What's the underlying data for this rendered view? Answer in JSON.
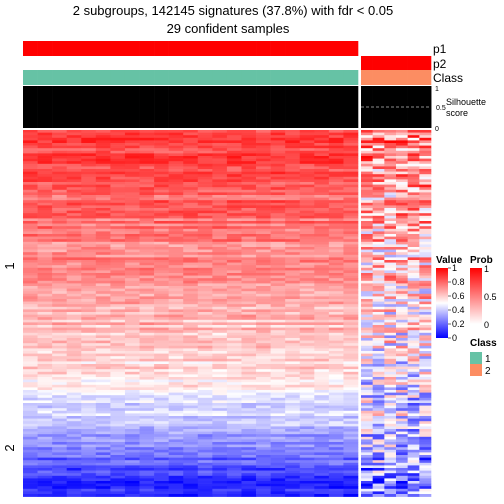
{
  "title_line1": "2 subgroups, 142145 signatures (37.8%) with fdr < 0.05",
  "title_line2": "29 confident samples",
  "annotation_labels": {
    "p1": "p1",
    "p2": "p2",
    "class": "Class"
  },
  "silhouette": {
    "label_line1": "Silhouette",
    "label_line2": "score",
    "ticks": [
      "1",
      "0.5",
      "0"
    ],
    "threshold": 0.5
  },
  "row_group_labels": [
    "1",
    "2"
  ],
  "legends": {
    "value": {
      "title": "Value",
      "ticks": [
        "1",
        "0.8",
        "0.6",
        "0.4",
        "0.2",
        "0"
      ]
    },
    "prob": {
      "title": "Prob",
      "ticks": [
        "1",
        "0.5",
        "0"
      ]
    },
    "class": {
      "title": "Class",
      "items": [
        {
          "label": "1",
          "color": "#66c2a5"
        },
        {
          "label": "2",
          "color": "#fc8d62"
        }
      ]
    }
  },
  "colors": {
    "high": "#ff0000",
    "mid": "#ffffff",
    "low": "#0000ff",
    "class1": "#66c2a5",
    "class2": "#fc8d62",
    "silhouette_bar": "#000000"
  },
  "chart_data": {
    "type": "heatmap",
    "columns": {
      "group1_count": 23,
      "group2_count": 6,
      "class": [
        1,
        1,
        1,
        1,
        1,
        1,
        1,
        1,
        1,
        1,
        1,
        1,
        1,
        1,
        1,
        1,
        1,
        1,
        1,
        1,
        1,
        1,
        1,
        2,
        2,
        2,
        2,
        2,
        2
      ],
      "p1": [
        1,
        1,
        1,
        1,
        1,
        1,
        1,
        1,
        1,
        1,
        1,
        1,
        1,
        1,
        1,
        1,
        1,
        1,
        1,
        1,
        1,
        1,
        1,
        0,
        0,
        0,
        0,
        0,
        0
      ],
      "p2": [
        0,
        0,
        0,
        0,
        0,
        0,
        0,
        0,
        0,
        0,
        0,
        0,
        0,
        0,
        0,
        0,
        0,
        0,
        0,
        0,
        0,
        0,
        0,
        1,
        1,
        1,
        1,
        1,
        1
      ],
      "silhouette": [
        1,
        1,
        1,
        1,
        1,
        1,
        1,
        1,
        1,
        1,
        1,
        1,
        1,
        1,
        1,
        1,
        1,
        1,
        1,
        1,
        1,
        1,
        1,
        1,
        1,
        1,
        1,
        1,
        1
      ]
    },
    "row_groups": [
      {
        "label": "1",
        "fraction": 0.67,
        "group1_value": [
          0.9,
          0.55
        ],
        "group2_value": [
          0.75,
          0.45
        ]
      },
      {
        "label": "2",
        "fraction": 0.33,
        "group1_value": [
          0.5,
          0.05
        ],
        "group2_value": [
          0.45,
          0.25
        ]
      }
    ],
    "value_range": [
      0,
      1
    ]
  }
}
